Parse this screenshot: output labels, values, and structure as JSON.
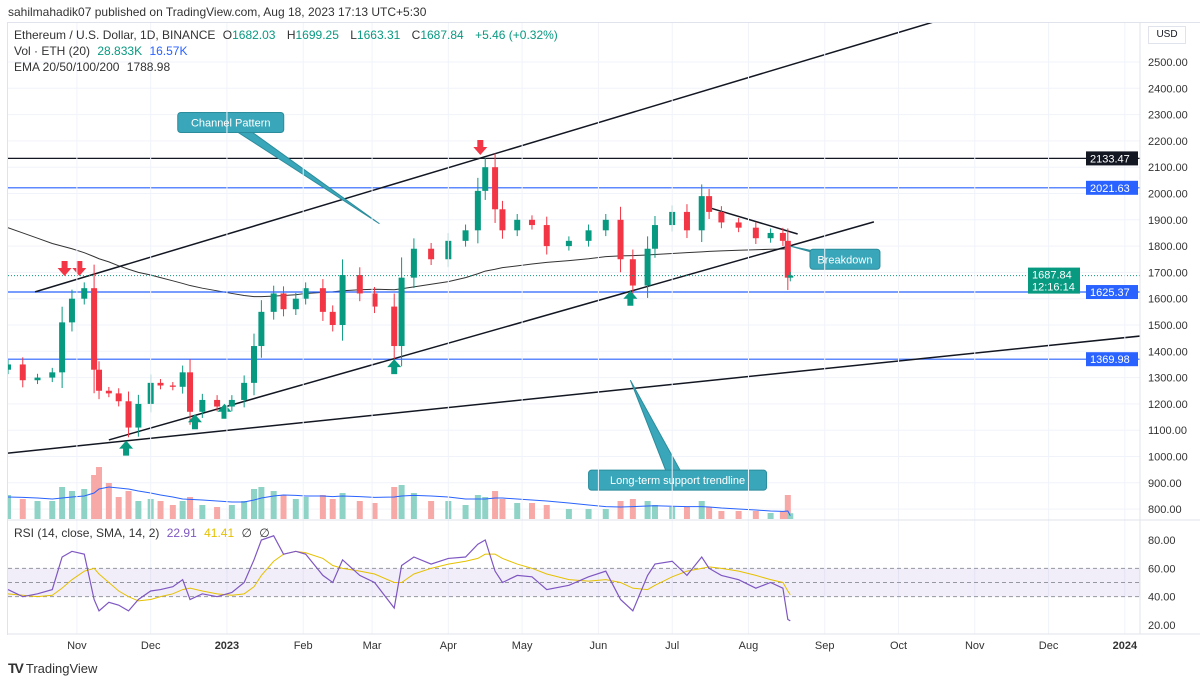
{
  "publisher": "sahilmahadik07 published on TradingView.com, Aug 18, 2023 17:13 UTC+5:30",
  "legend": {
    "symbol": "Ethereum / U.S. Dollar, 1D, BINANCE",
    "o_label": "O",
    "o": "1682.03",
    "h_label": "H",
    "h": "1699.25",
    "l_label": "L",
    "l": "1663.31",
    "c_label": "C",
    "c": "1687.84",
    "change": "+5.46 (+0.32%)",
    "vol_label": "Vol · ETH (20)",
    "vol": "28.833K",
    "vol_sma": "16.57K",
    "ema_label": "EMA 20/50/100/200",
    "ema": "1788.98",
    "rsi_label": "RSI (14, close, SMA, 14, 2)",
    "rsi": "22.91",
    "rsi_sma": "41.41",
    "rsi_x1": "∅",
    "rsi_x2": "∅"
  },
  "currency": "USD",
  "brand": "TradingView",
  "colors": {
    "up": "#089981",
    "down": "#f23645",
    "level_blue": "#2962ff",
    "ema": "#333333",
    "vol_sma": "#2962ff",
    "rsi": "#7e57c2",
    "rsi_sma": "#e5c100",
    "callout": "#3aa6b9"
  },
  "chart_data": {
    "type": "candlestick",
    "title": "Ethereum / U.S. Dollar, 1D, BINANCE",
    "xlim": [
      "2022-10-04",
      "2024-01-31"
    ],
    "ylim": [
      760,
      2620
    ],
    "y_ticks": [
      "2500.00",
      "2400.00",
      "2300.00",
      "2200.00",
      "2100.00",
      "2000.00",
      "1900.00",
      "1800.00",
      "1700.00",
      "1600.00",
      "1500.00",
      "1400.00",
      "1300.00",
      "1200.00",
      "1100.00",
      "1000.00",
      "900.00",
      "800.00"
    ],
    "x_ticks": [
      {
        "date": "2022-11-01",
        "label": "Nov"
      },
      {
        "date": "2022-12-01",
        "label": "Dec"
      },
      {
        "date": "2023-01-01",
        "label": "2023",
        "bold": true
      },
      {
        "date": "2023-02-01",
        "label": "Feb"
      },
      {
        "date": "2023-03-01",
        "label": "Mar"
      },
      {
        "date": "2023-04-01",
        "label": "Apr"
      },
      {
        "date": "2023-05-01",
        "label": "May"
      },
      {
        "date": "2023-06-01",
        "label": "Jun"
      },
      {
        "date": "2023-07-01",
        "label": "Jul"
      },
      {
        "date": "2023-08-01",
        "label": "Aug"
      },
      {
        "date": "2023-09-01",
        "label": "Sep"
      },
      {
        "date": "2023-10-01",
        "label": "Oct"
      },
      {
        "date": "2023-11-01",
        "label": "Nov"
      },
      {
        "date": "2023-12-01",
        "label": "Dec"
      },
      {
        "date": "2024-01-01",
        "label": "2024",
        "bold": true
      }
    ],
    "dates": [
      "2022-10-04",
      "2022-10-10",
      "2022-10-16",
      "2022-10-22",
      "2022-10-26",
      "2022-10-30",
      "2022-11-04",
      "2022-11-08",
      "2022-11-10",
      "2022-11-14",
      "2022-11-18",
      "2022-11-22",
      "2022-11-26",
      "2022-12-01",
      "2022-12-05",
      "2022-12-10",
      "2022-12-14",
      "2022-12-17",
      "2022-12-22",
      "2022-12-28",
      "2023-01-03",
      "2023-01-08",
      "2023-01-12",
      "2023-01-15",
      "2023-01-20",
      "2023-01-24",
      "2023-01-29",
      "2023-02-02",
      "2023-02-09",
      "2023-02-13",
      "2023-02-17",
      "2023-02-24",
      "2023-03-02",
      "2023-03-10",
      "2023-03-13",
      "2023-03-18",
      "2023-03-25",
      "2023-04-01",
      "2023-04-08",
      "2023-04-13",
      "2023-04-16",
      "2023-04-20",
      "2023-04-23",
      "2023-04-29",
      "2023-05-05",
      "2023-05-11",
      "2023-05-20",
      "2023-05-28",
      "2023-06-04",
      "2023-06-10",
      "2023-06-15",
      "2023-06-21",
      "2023-06-24",
      "2023-07-01",
      "2023-07-07",
      "2023-07-13",
      "2023-07-16",
      "2023-07-21",
      "2023-07-28",
      "2023-08-04",
      "2023-08-10",
      "2023-08-15",
      "2023-08-17",
      "2023-08-18"
    ],
    "close": [
      1350,
      1290,
      1300,
      1320,
      1510,
      1600,
      1640,
      1330,
      1250,
      1240,
      1210,
      1110,
      1200,
      1280,
      1270,
      1265,
      1320,
      1170,
      1215,
      1190,
      1215,
      1280,
      1420,
      1550,
      1620,
      1560,
      1600,
      1640,
      1550,
      1500,
      1690,
      1620,
      1570,
      1420,
      1680,
      1790,
      1750,
      1820,
      1860,
      2010,
      2100,
      1940,
      1860,
      1900,
      1880,
      1800,
      1820,
      1860,
      1900,
      1750,
      1650,
      1790,
      1880,
      1930,
      1860,
      1990,
      1930,
      1890,
      1870,
      1830,
      1850,
      1820,
      1680,
      1687.84
    ],
    "ema200": [
      1870,
      1850,
      1830,
      1810,
      1800,
      1790,
      1775,
      1760,
      1752,
      1740,
      1725,
      1712,
      1700,
      1690,
      1680,
      1668,
      1658,
      1650,
      1640,
      1630,
      1620,
      1612,
      1608,
      1608,
      1610,
      1612,
      1615,
      1620,
      1624,
      1626,
      1630,
      1634,
      1636,
      1634,
      1638,
      1645,
      1655,
      1665,
      1680,
      1695,
      1705,
      1712,
      1718,
      1725,
      1732,
      1738,
      1745,
      1752,
      1760,
      1763,
      1764,
      1766,
      1768,
      1772,
      1775,
      1778,
      1780,
      1782,
      1784,
      1786,
      1788,
      1789,
      1789,
      1788.98
    ],
    "volume_k": [
      120,
      100,
      90,
      90,
      160,
      140,
      150,
      220,
      260,
      180,
      110,
      140,
      90,
      100,
      90,
      70,
      90,
      110,
      70,
      60,
      70,
      90,
      150,
      160,
      140,
      120,
      100,
      110,
      120,
      100,
      130,
      90,
      80,
      160,
      170,
      130,
      90,
      90,
      70,
      120,
      110,
      140,
      100,
      80,
      80,
      70,
      50,
      50,
      50,
      90,
      100,
      90,
      70,
      60,
      60,
      90,
      60,
      40,
      40,
      40,
      30,
      40,
      120,
      28.833
    ],
    "volume_sma_k": [
      110,
      108,
      105,
      100,
      105,
      110,
      115,
      130,
      150,
      160,
      155,
      150,
      140,
      130,
      120,
      110,
      100,
      98,
      95,
      90,
      85,
      85,
      95,
      105,
      115,
      120,
      118,
      115,
      115,
      112,
      115,
      112,
      108,
      110,
      115,
      118,
      115,
      110,
      100,
      100,
      100,
      105,
      105,
      100,
      95,
      90,
      80,
      70,
      62,
      60,
      62,
      65,
      66,
      64,
      62,
      62,
      60,
      55,
      50,
      45,
      40,
      38,
      40,
      16.57
    ],
    "rsi": [
      45,
      40,
      42,
      45,
      68,
      72,
      70,
      38,
      30,
      36,
      34,
      30,
      38,
      44,
      45,
      47,
      52,
      38,
      42,
      40,
      43,
      50,
      66,
      80,
      83,
      70,
      72,
      70,
      55,
      50,
      66,
      55,
      50,
      32,
      62,
      68,
      63,
      67,
      68,
      77,
      80,
      58,
      50,
      55,
      54,
      45,
      48,
      54,
      58,
      38,
      30,
      55,
      63,
      65,
      55,
      68,
      60,
      55,
      52,
      46,
      50,
      46,
      24,
      22.91
    ],
    "rsi_sma": [
      42,
      41,
      40,
      41,
      46,
      52,
      58,
      60,
      56,
      50,
      44,
      40,
      37,
      38,
      40,
      42,
      45,
      46,
      44,
      42,
      41,
      42,
      47,
      55,
      65,
      70,
      72,
      71,
      67,
      62,
      60,
      58,
      56,
      50,
      50,
      56,
      60,
      63,
      65,
      67,
      70,
      70,
      67,
      63,
      60,
      56,
      52,
      51,
      52,
      50,
      46,
      45,
      48,
      54,
      58,
      60,
      61,
      60,
      58,
      55,
      52,
      50,
      44,
      41.41
    ],
    "rsi_ylim": [
      10,
      90
    ],
    "rsi_ticks": [
      "80.00",
      "60.00",
      "40.00",
      "20.00"
    ],
    "rsi_band": [
      40,
      60
    ],
    "levels": [
      {
        "price": 2133.47,
        "label": "2133.47",
        "color": "#131722"
      },
      {
        "price": 2021.63,
        "label": "2021.63",
        "color": "#2962ff"
      },
      {
        "price": 1625.37,
        "label": "1625.37",
        "color": "#2962ff"
      },
      {
        "price": 1369.98,
        "label": "1369.98",
        "color": "#2962ff"
      }
    ],
    "last_price": {
      "label": "1687.84",
      "countdown": "12:16:14",
      "price": 1687.84
    },
    "trendlines": [
      {
        "from": [
          "2022-10-15",
          1626
        ],
        "to": [
          "2023-10-18",
          2660
        ]
      },
      {
        "from": [
          "2022-11-14",
          1063
        ],
        "to": [
          "2023-09-21",
          1892
        ]
      },
      {
        "from": [
          "2022-10-04",
          1013
        ],
        "to": [
          "2024-01-31",
          1481
        ]
      },
      {
        "from": [
          "2023-07-15",
          1949
        ],
        "to": [
          "2023-08-21",
          1846
        ]
      }
    ],
    "arrows_down": [
      [
        "2022-10-27",
        1690
      ],
      [
        "2022-11-02",
        1690
      ],
      [
        "2023-04-14",
        2150
      ]
    ],
    "arrows_up": [
      [
        "2022-11-21",
        1030
      ],
      [
        "2022-12-19",
        1130
      ],
      [
        "2022-12-31",
        1170
      ],
      [
        "2023-03-10",
        1340
      ],
      [
        "2023-06-14",
        1600
      ]
    ],
    "annotations": [
      {
        "text": "Channel Pattern",
        "at": [
          "2022-12-12",
          2270
        ],
        "target": [
          "2023-03-04",
          1885
        ]
      },
      {
        "text": "Breakdown",
        "at": [
          "2023-08-26",
          1750
        ],
        "target": [
          "2023-08-18",
          1800
        ]
      },
      {
        "text": "Long-term support trendline",
        "at": [
          "2023-05-28",
          910
        ],
        "target": [
          "2023-06-14",
          1290
        ]
      }
    ]
  }
}
